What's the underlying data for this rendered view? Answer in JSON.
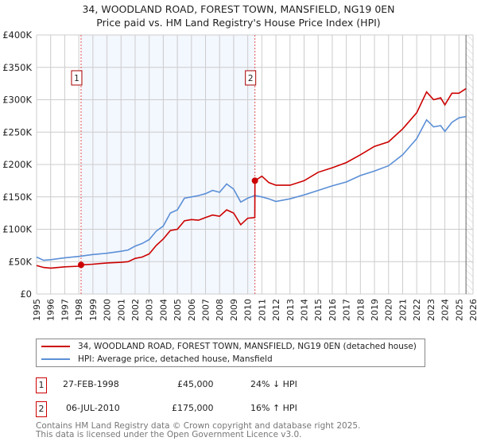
{
  "chart_data": {
    "type": "line",
    "title": "34, WOODLAND ROAD, FOREST TOWN, MANSFIELD, NG19 0EN",
    "subtitle": "Price paid vs. HM Land Registry's House Price Index (HPI)",
    "xlim": [
      1995,
      2026
    ],
    "ylim": [
      0,
      400000
    ],
    "yticks": [
      {
        "v": 0,
        "label": "£0"
      },
      {
        "v": 50000,
        "label": "£50K"
      },
      {
        "v": 100000,
        "label": "£100K"
      },
      {
        "v": 150000,
        "label": "£150K"
      },
      {
        "v": 200000,
        "label": "£200K"
      },
      {
        "v": 250000,
        "label": "£250K"
      },
      {
        "v": 300000,
        "label": "£300K"
      },
      {
        "v": 350000,
        "label": "£350K"
      },
      {
        "v": 400000,
        "label": "£400K"
      }
    ],
    "xticks": [
      "1995",
      "1996",
      "1997",
      "1998",
      "1999",
      "2000",
      "2001",
      "2002",
      "2003",
      "2004",
      "2005",
      "2006",
      "2007",
      "2008",
      "2009",
      "2010",
      "2011",
      "2012",
      "2013",
      "2014",
      "2015",
      "2016",
      "2017",
      "2018",
      "2019",
      "2020",
      "2021",
      "2022",
      "2023",
      "2024",
      "2025",
      "2026"
    ],
    "grid": true,
    "shaded_period": [
      1998.16,
      2010.51
    ],
    "forecast_hatch_from": 2025.5,
    "series": [
      {
        "name": "34, WOODLAND ROAD, FOREST TOWN, MANSFIELD, NG19 0EN (detached house)",
        "color": "#cc0000",
        "x": [
          1995,
          1995.5,
          1996,
          1997,
          1998,
          1998.16,
          1999,
          2000,
          2001,
          2001.5,
          2002,
          2002.5,
          2003,
          2003.5,
          2004,
          2004.5,
          2005,
          2005.5,
          2006,
          2006.5,
          2007,
          2007.5,
          2008,
          2008.5,
          2009,
          2009.5,
          2010,
          2010.5,
          2010.51,
          2011,
          2011.5,
          2012,
          2013,
          2014,
          2015,
          2016,
          2017,
          2018,
          2019,
          2020,
          2021,
          2022,
          2022.7,
          2023.2,
          2023.7,
          2024,
          2024.5,
          2025,
          2025.5
        ],
        "y": [
          44000,
          41000,
          40000,
          42000,
          43000,
          45000,
          46000,
          48000,
          49000,
          50000,
          55000,
          57000,
          62000,
          75000,
          85000,
          98000,
          100000,
          113000,
          115000,
          114000,
          118000,
          122000,
          120000,
          130000,
          125000,
          107000,
          117000,
          118000,
          175000,
          182000,
          172000,
          168000,
          168000,
          175000,
          188000,
          195000,
          203000,
          215000,
          228000,
          235000,
          255000,
          280000,
          312000,
          300000,
          303000,
          292000,
          310000,
          310000,
          317000
        ]
      },
      {
        "name": "HPI: Average price, detached house, Mansfield",
        "color": "#5b8fd6",
        "x": [
          1995,
          1995.5,
          1996,
          1997,
          1998,
          1999,
          2000,
          2001,
          2001.5,
          2002,
          2002.5,
          2003,
          2003.5,
          2004,
          2004.5,
          2005,
          2005.5,
          2006,
          2006.5,
          2007,
          2007.5,
          2008,
          2008.5,
          2009,
          2009.5,
          2010,
          2010.5,
          2011,
          2011.5,
          2012,
          2013,
          2014,
          2015,
          2016,
          2017,
          2018,
          2019,
          2020,
          2021,
          2022,
          2022.7,
          2023.2,
          2023.7,
          2024,
          2024.5,
          2025,
          2025.5
        ],
        "y": [
          57000,
          52000,
          53000,
          56000,
          58000,
          61000,
          63000,
          66000,
          68000,
          74000,
          78000,
          84000,
          97000,
          105000,
          125000,
          130000,
          148000,
          150000,
          152000,
          155000,
          160000,
          157000,
          170000,
          162000,
          142000,
          148000,
          152000,
          150000,
          147000,
          143000,
          147000,
          153000,
          160000,
          167000,
          173000,
          183000,
          190000,
          198000,
          215000,
          240000,
          269000,
          258000,
          260000,
          251000,
          265000,
          272000,
          274000
        ]
      }
    ],
    "transactions": [
      {
        "id": "1",
        "date": "27-FEB-1998",
        "x": 1998.16,
        "price": "£45,000",
        "value": 45000,
        "hpi": "24% ↓ HPI"
      },
      {
        "id": "2",
        "date": "06-JUL-2010",
        "x": 2010.51,
        "price": "£175,000",
        "value": 175000,
        "hpi": "16% ↑ HPI"
      }
    ]
  },
  "footer": {
    "line1": "Contains HM Land Registry data © Crown copyright and database right 2025.",
    "line2": "This data is licensed under the Open Government Licence v3.0."
  }
}
